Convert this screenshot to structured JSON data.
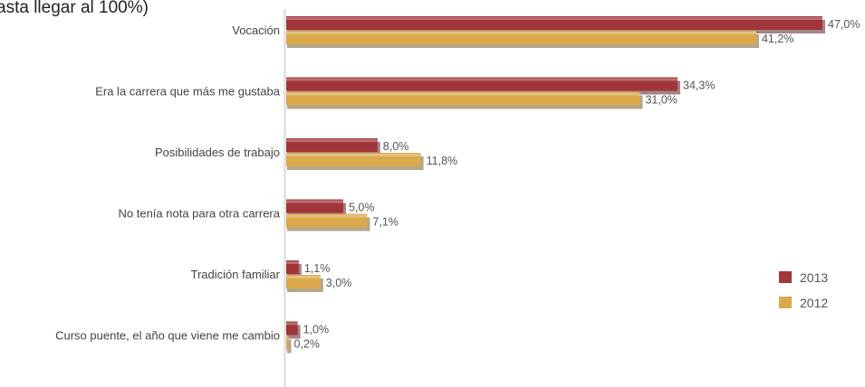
{
  "chart_data": {
    "type": "bar",
    "orientation": "horizontal",
    "title": "asta llegar al 100%)",
    "categories": [
      "Vocación",
      "Era la carrera que más me gustaba",
      "Posibilidades de trabajo",
      "No tenía nota para otra carrera",
      "Tradición familiar",
      "Curso puente, el año que viene me cambio"
    ],
    "series": [
      {
        "name": "2013",
        "color": "#a0353a",
        "values": [
          47.0,
          34.3,
          8.0,
          5.0,
          1.1,
          1.0
        ],
        "labels": [
          "47,0%",
          "34,3%",
          "8,0%",
          "5,0%",
          "1,1%",
          "1,0%"
        ]
      },
      {
        "name": "2012",
        "color": "#d9a94c",
        "values": [
          41.2,
          31.0,
          11.8,
          7.1,
          3.0,
          0.2
        ],
        "labels": [
          "41,2%",
          "31,0%",
          "11,8%",
          "7,1%",
          "3,0%",
          "0,2%"
        ]
      }
    ],
    "xlim": [
      0,
      47
    ],
    "grid": false,
    "legend": "right"
  }
}
